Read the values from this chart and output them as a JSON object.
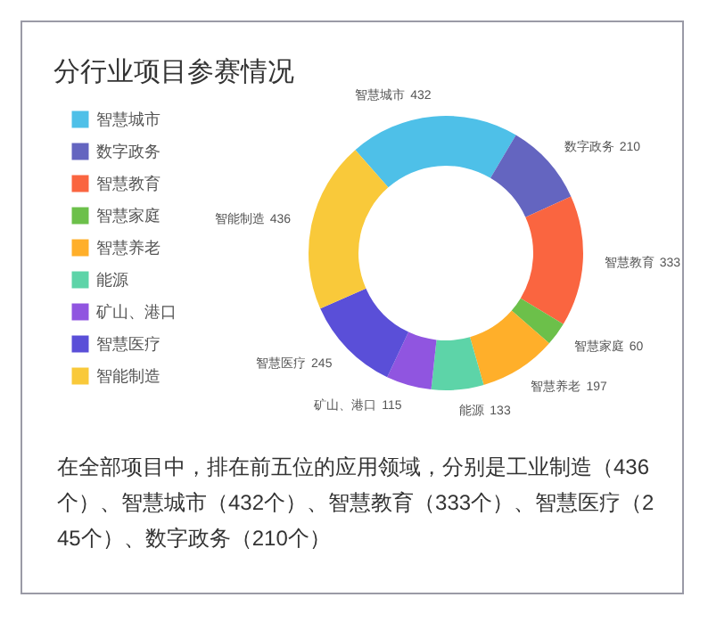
{
  "chart_data": {
    "type": "donut",
    "title": "分行业项目参赛情况",
    "categories": [
      "智慧城市",
      "数字政务",
      "智慧教育",
      "智慧家庭",
      "智慧养老",
      "能源",
      "矿山、港口",
      "智慧医疗",
      "智能制造"
    ],
    "values": [
      432,
      210,
      333,
      60,
      197,
      133,
      115,
      245,
      436
    ],
    "colors": [
      "#4ec0e8",
      "#6465c0",
      "#fa6540",
      "#6cc04a",
      "#ffaf2a",
      "#5dd4a8",
      "#9055e0",
      "#5a4fd8",
      "#f9c93a"
    ],
    "data_labels": true,
    "legend": "left",
    "annotations": [
      "在全部项目中，排在前五位的应用领域，分别是工业制造（436个）、智慧城市（432个）、智慧教育（333个）、智慧医疗（245个）、数字政务（210个）"
    ]
  }
}
